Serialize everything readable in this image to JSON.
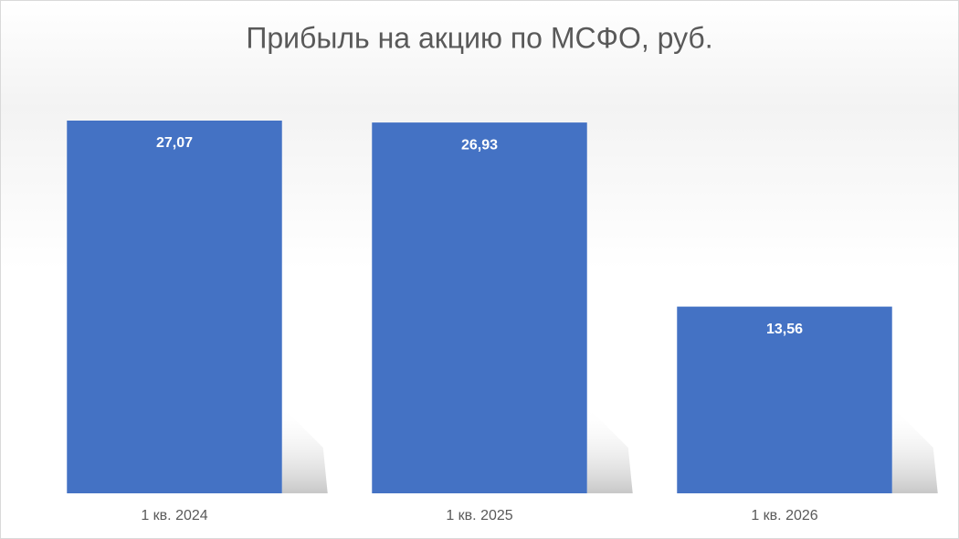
{
  "chart_data": {
    "type": "bar",
    "title": "Прибыль на акцию по МСФО, руб.",
    "categories": [
      "1 кв. 2024",
      "1 кв. 2025",
      "1 кв. 2026"
    ],
    "values": [
      27.07,
      26.93,
      13.56
    ],
    "value_labels": [
      "27,07",
      "26,93",
      "13,56"
    ],
    "color": "#4472c4"
  }
}
